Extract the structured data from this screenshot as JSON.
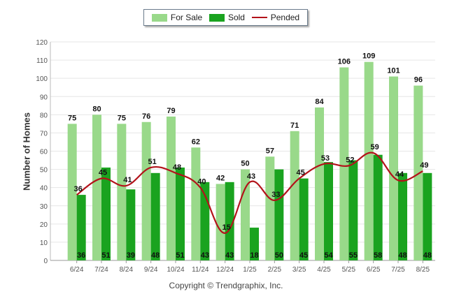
{
  "legend": {
    "for_sale_label": "For Sale",
    "sold_label": "Sold",
    "pended_label": "Pended"
  },
  "y_axis_title": "Number of Homes",
  "copyright": "Copyright © Trendgraphix, Inc.",
  "colors": {
    "for_sale": "#99d98a",
    "sold": "#1aa31f",
    "pended": "#b3121a",
    "grid": "#e6e6e6"
  },
  "chart_data": {
    "type": "bar",
    "categories": [
      "6/24",
      "7/24",
      "8/24",
      "9/24",
      "10/24",
      "11/24",
      "12/24",
      "1/25",
      "2/25",
      "3/25",
      "4/25",
      "5/25",
      "6/25",
      "7/25",
      "8/25"
    ],
    "series": [
      {
        "name": "For Sale",
        "type": "bar",
        "values": [
          75,
          80,
          75,
          76,
          79,
          62,
          42,
          50,
          57,
          71,
          84,
          106,
          109,
          101,
          96
        ]
      },
      {
        "name": "Sold",
        "type": "bar",
        "values": [
          36,
          51,
          39,
          48,
          51,
          43,
          43,
          18,
          50,
          45,
          54,
          55,
          58,
          48,
          48
        ]
      },
      {
        "name": "Pended",
        "type": "line",
        "values": [
          36,
          45,
          41,
          51,
          48,
          40,
          15,
          43,
          33,
          45,
          53,
          52,
          59,
          44,
          49
        ]
      }
    ],
    "ylabel": "Number of Homes",
    "ylim": [
      0,
      120
    ],
    "yticks": [
      0,
      10,
      20,
      30,
      40,
      50,
      60,
      70,
      80,
      90,
      100,
      110,
      120
    ],
    "grid": true,
    "legend_position": "top-center"
  }
}
